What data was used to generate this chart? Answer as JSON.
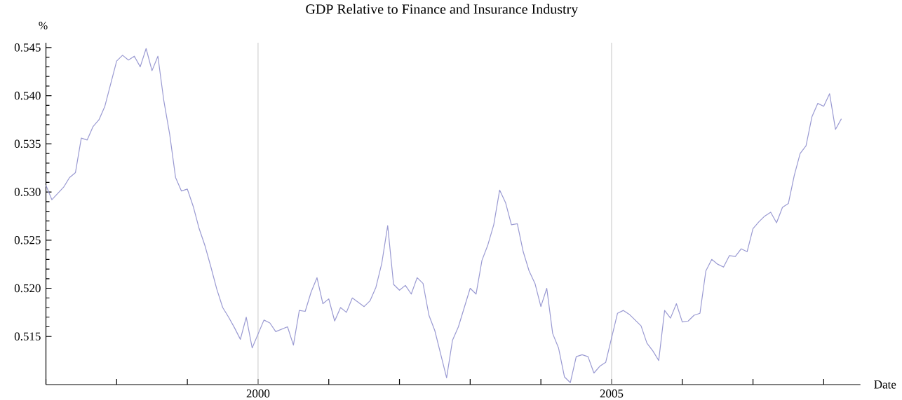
{
  "chart_data": {
    "type": "line",
    "title": "GDP Relative to Finance and Insurance Industry",
    "xlabel": "Date",
    "ylabel": "%",
    "x": [
      "1997-01",
      "1997-02",
      "1997-04",
      "1997-05",
      "1997-06",
      "1997-07",
      "1997-08",
      "1997-09",
      "1997-10",
      "1997-11",
      "1998-01",
      "1998-02",
      "1998-03",
      "1998-04",
      "1998-05",
      "1998-06",
      "1998-07",
      "1998-08",
      "1998-09",
      "1998-10",
      "1998-11",
      "1998-12",
      "1999-01",
      "1999-02",
      "1999-03",
      "1999-04",
      "1999-05",
      "1999-06",
      "1999-07",
      "1999-08",
      "1999-09",
      "1999-10",
      "1999-11",
      "1999-12",
      "2000-02",
      "2000-03",
      "2000-04",
      "2000-06",
      "2000-07",
      "2000-08",
      "2000-09",
      "2000-10",
      "2000-11",
      "2000-12",
      "2001-01",
      "2001-02",
      "2001-03",
      "2001-04",
      "2001-05",
      "2001-07",
      "2001-08",
      "2001-09",
      "2001-10",
      "2001-11",
      "2001-12",
      "2002-01",
      "2002-02",
      "2002-03",
      "2002-04",
      "2002-05",
      "2002-06",
      "2002-07",
      "2002-09",
      "2002-10",
      "2002-11",
      "2003-01",
      "2003-02",
      "2003-03",
      "2003-04",
      "2003-05",
      "2003-06",
      "2003-07",
      "2003-08",
      "2003-09",
      "2003-10",
      "2003-11",
      "2003-12",
      "2004-01",
      "2004-02",
      "2004-03",
      "2004-04",
      "2004-05",
      "2004-06",
      "2004-07",
      "2004-08",
      "2004-09",
      "2004-10",
      "2004-11",
      "2004-12",
      "2005-02",
      "2005-03",
      "2005-04",
      "2005-06",
      "2005-07",
      "2005-08",
      "2005-09",
      "2005-10",
      "2005-11",
      "2005-12",
      "2006-01",
      "2006-02",
      "2006-03",
      "2006-04",
      "2006-05",
      "2006-06",
      "2006-07",
      "2006-08",
      "2006-09",
      "2006-10",
      "2006-11",
      "2006-12",
      "2007-01",
      "2007-02",
      "2007-03",
      "2007-04",
      "2007-05",
      "2007-06",
      "2007-07",
      "2007-08",
      "2007-09",
      "2007-10",
      "2007-11",
      "2007-12",
      "2008-01",
      "2008-02",
      "2008-03",
      "2008-04"
    ],
    "series": [
      {
        "color": "#9a9ad2",
        "values": [
          0.5307,
          0.5292,
          0.5305,
          0.5315,
          0.532,
          0.5356,
          0.5354,
          0.5368,
          0.5375,
          0.5389,
          0.5436,
          0.5442,
          0.5437,
          0.5441,
          0.543,
          0.5449,
          0.5426,
          0.5441,
          0.5395,
          0.536,
          0.5315,
          0.5301,
          0.5303,
          0.5285,
          0.5262,
          0.5244,
          0.5222,
          0.5199,
          0.518,
          0.517,
          0.5159,
          0.5147,
          0.517,
          0.5138,
          0.5167,
          0.5164,
          0.5155,
          0.516,
          0.5141,
          0.5177,
          0.5176,
          0.5196,
          0.5211,
          0.5184,
          0.5189,
          0.5166,
          0.518,
          0.5175,
          0.519,
          0.5181,
          0.5187,
          0.5201,
          0.5226,
          0.5265,
          0.5204,
          0.5198,
          0.5203,
          0.5194,
          0.5211,
          0.5205,
          0.5172,
          0.5156,
          0.5107,
          0.5146,
          0.516,
          0.52,
          0.5194,
          0.5229,
          0.5245,
          0.5266,
          0.5302,
          0.5289,
          0.5266,
          0.5267,
          0.5238,
          0.5218,
          0.5205,
          0.5181,
          0.52,
          0.5153,
          0.5138,
          0.5108,
          0.5102,
          0.5129,
          0.5131,
          0.5129,
          0.5112,
          0.5119,
          0.5123,
          0.5174,
          0.5177,
          0.5173,
          0.5161,
          0.5143,
          0.5135,
          0.5125,
          0.5177,
          0.5169,
          0.5184,
          0.5165,
          0.5166,
          0.5172,
          0.5174,
          0.5218,
          0.523,
          0.5225,
          0.5222,
          0.5234,
          0.5233,
          0.5241,
          0.5238,
          0.5262,
          0.5269,
          0.5275,
          0.5279,
          0.5268,
          0.5284,
          0.5288,
          0.5317,
          0.534,
          0.5348,
          0.5378,
          0.5392,
          0.5389,
          0.5402,
          0.5365,
          0.5376
        ]
      }
    ],
    "xlim": [
      "1997-01-01",
      "2008-07-08"
    ],
    "ylim": [
      0.51,
      0.5455
    ],
    "xticks": [
      {
        "value": "1997",
        "label": null
      },
      {
        "value": "1998",
        "label": null
      },
      {
        "value": "1999",
        "label": null
      },
      {
        "value": "2000",
        "label": "2000"
      },
      {
        "value": "2001",
        "label": null
      },
      {
        "value": "2002",
        "label": null
      },
      {
        "value": "2003",
        "label": null
      },
      {
        "value": "2004",
        "label": null
      },
      {
        "value": "2005",
        "label": "2005"
      },
      {
        "value": "2006",
        "label": null
      },
      {
        "value": "2007",
        "label": null
      },
      {
        "value": "2008",
        "label": null
      }
    ],
    "yticks": [
      0.515,
      {
        "value": 0.52,
        "label": "0.520"
      },
      0.525,
      {
        "value": 0.53,
        "label": "0.530"
      },
      0.535,
      {
        "value": 0.54,
        "label": "0.540"
      },
      0.545
    ],
    "ref_lines": [
      {
        "axis": "x",
        "value": "2000",
        "color": "#c8c8c8"
      },
      {
        "axis": "x",
        "value": "2005",
        "color": "#c8c8c8"
      }
    ]
  }
}
